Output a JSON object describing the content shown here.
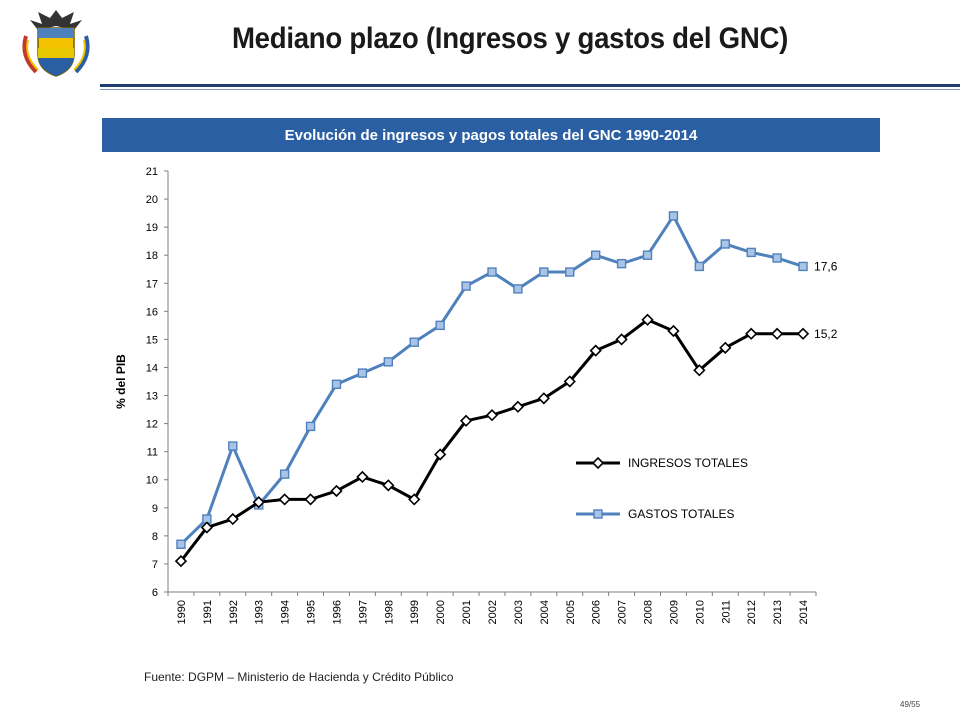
{
  "slide": {
    "title": "Mediano plazo (Ingresos y gastos del GNC)",
    "source": "Fuente: DGPM – Ministerio de Hacienda y Crédito Público",
    "page_number": "49/55"
  },
  "colors": {
    "banner": "#2b5fa4",
    "rule": "#1f3f73",
    "ingresos": "#000000",
    "gastos": "#4f81bd"
  },
  "chart_data": {
    "type": "line",
    "title": "Evolución de ingresos y pagos totales del GNC 1990-2014",
    "ylabel": "% del PIB",
    "xlabel": "",
    "ylim": [
      6,
      21
    ],
    "yticks": [
      6,
      7,
      8,
      9,
      10,
      11,
      12,
      13,
      14,
      15,
      16,
      17,
      18,
      19,
      20,
      21
    ],
    "grid": false,
    "legend": "center-right",
    "categories": [
      "1990",
      "1991",
      "1992",
      "1993",
      "1994",
      "1995",
      "1996",
      "1997",
      "1998",
      "1999",
      "2000",
      "2001",
      "2002",
      "2003",
      "2004",
      "2005",
      "2006",
      "2007",
      "2008",
      "2009",
      "2010",
      "2011",
      "2012",
      "2013",
      "2014"
    ],
    "series": [
      {
        "name": "INGRESOS TOTALES",
        "marker": "diamond",
        "color": "#000000",
        "end_label": "15,2",
        "values": [
          7.1,
          8.3,
          8.6,
          9.2,
          9.3,
          9.3,
          9.6,
          10.1,
          9.8,
          9.3,
          10.9,
          12.1,
          12.3,
          12.6,
          12.9,
          13.5,
          14.6,
          15.0,
          15.7,
          15.3,
          13.9,
          14.7,
          15.2,
          15.2,
          15.2
        ]
      },
      {
        "name": "GASTOS TOTALES",
        "marker": "square",
        "color": "#4f81bd",
        "end_label": "17,6",
        "values": [
          7.7,
          8.6,
          11.2,
          9.1,
          10.2,
          11.9,
          13.4,
          13.8,
          14.2,
          14.9,
          15.5,
          16.9,
          17.4,
          16.8,
          17.4,
          17.4,
          18.0,
          17.7,
          18.0,
          19.4,
          17.6,
          18.4,
          18.1,
          17.9,
          17.6
        ]
      }
    ]
  }
}
